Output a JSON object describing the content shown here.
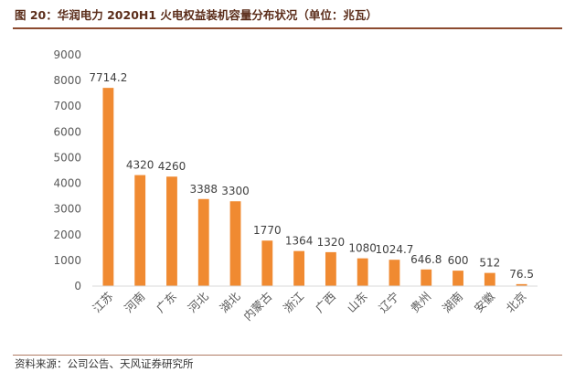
{
  "title": "图 20：华润电力 2020H1 火电权益装机容量分布状况（单位：兆瓦）",
  "source": "资料来源：公司公告、天风证券研究所",
  "colors": {
    "bar": "#F08A31",
    "title": "#5B2D1A",
    "rule": "#8C4A2F"
  },
  "chart_data": {
    "type": "bar",
    "title": "图 20：华润电力 2020H1 火电权益装机容量分布状况（单位：兆瓦）",
    "unit": "兆瓦",
    "categories": [
      "江苏",
      "河南",
      "广东",
      "河北",
      "湖北",
      "内蒙古",
      "浙江",
      "广西",
      "山东",
      "辽宁",
      "贵州",
      "湖南",
      "安徽",
      "北京"
    ],
    "values": [
      7714.2,
      4320,
      4260,
      3388,
      3300,
      1770,
      1364,
      1320,
      1080,
      1024.7,
      646.8,
      600,
      512,
      76.5
    ],
    "value_labels": [
      "7714.2",
      "4320",
      "4260",
      "3388",
      "3300",
      "1770",
      "1364",
      "1320",
      "1080",
      "1024.7",
      "646.8",
      "600",
      "512",
      "76.5"
    ],
    "y_ticks": [
      "0",
      "1000",
      "2000",
      "3000",
      "4000",
      "5000",
      "6000",
      "7000",
      "8000",
      "9000"
    ],
    "ylim": [
      0,
      9000
    ],
    "grid": false,
    "legend": "none"
  }
}
